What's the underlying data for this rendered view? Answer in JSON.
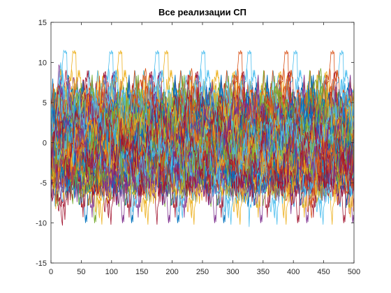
{
  "chart_data": {
    "type": "line",
    "title": "Все реализации СП",
    "xlabel": "",
    "ylabel": "",
    "xlim": [
      0,
      500
    ],
    "ylim": [
      -15,
      15
    ],
    "x_ticks": [
      0,
      50,
      100,
      150,
      200,
      250,
      300,
      350,
      400,
      450,
      500
    ],
    "y_ticks": [
      -15,
      -10,
      -5,
      0,
      5,
      10,
      15
    ],
    "grid": false,
    "legend": "none",
    "series_colors": [
      "#0072BD",
      "#D95319",
      "#EDB120",
      "#7E2F8E",
      "#77AC30",
      "#4DBEEE",
      "#A2142F"
    ],
    "x_samples": [
      0,
      500
    ]
  }
}
